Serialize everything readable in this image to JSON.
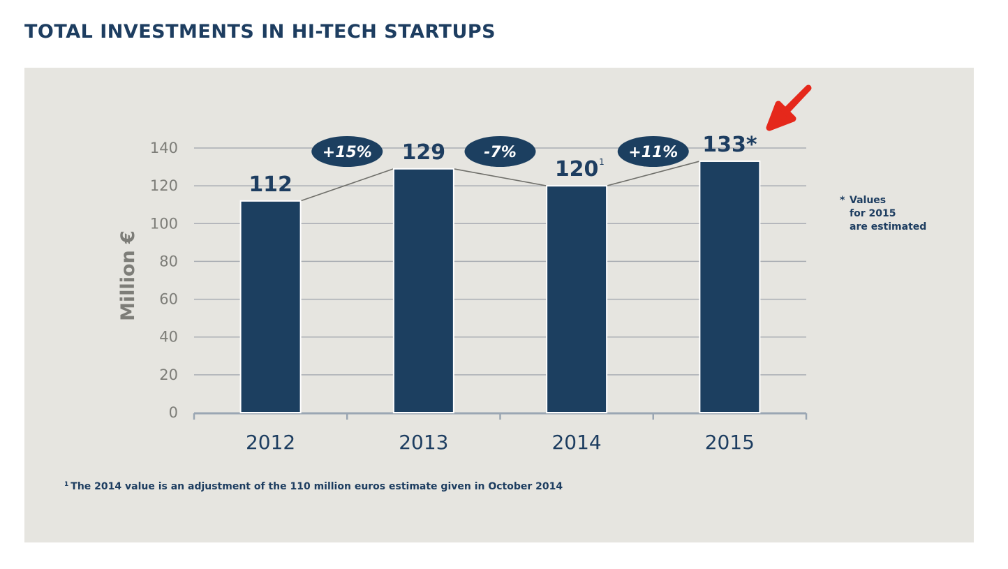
{
  "title": "TOTAL INVESTMENTS IN HI-TECH STARTUPS",
  "chart_data": {
    "type": "bar",
    "categories": [
      "2012",
      "2013",
      "2014",
      "2015"
    ],
    "values": [
      112,
      129,
      120,
      133
    ],
    "value_labels": [
      "112",
      "129",
      "120",
      "133*"
    ],
    "value_superscripts": [
      "",
      "",
      "1",
      ""
    ],
    "changes": [
      "+15%",
      "-7%",
      "+11%"
    ],
    "ylabel": "Million €",
    "ylim": [
      0,
      140
    ],
    "yticks": [
      0,
      20,
      40,
      60,
      80,
      100,
      120,
      140
    ],
    "grid": true,
    "annotation_arrow": "red arrow pointing at 2015 value"
  },
  "colors": {
    "bar": "#1c3f60",
    "panel": "#e6e5e0",
    "text": "#1d3d60",
    "axis_text": "#7d7d78",
    "grid": "#a9adb3",
    "arrow": "#e5281b"
  },
  "note": {
    "star": "*",
    "lines": [
      "Values",
      "for 2015",
      "are estimated"
    ]
  },
  "footnote": {
    "marker": "1",
    "text": "The 2014 value is an adjustment of the 110 million euros estimate given in October 2014"
  }
}
